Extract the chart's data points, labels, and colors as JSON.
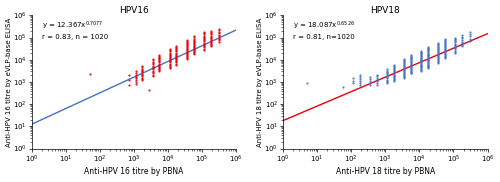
{
  "hpv16": {
    "title": "HPV16",
    "xlabel": "Anti-HPV 16 titre by PBNA",
    "ylabel": "Anti-HPV 16 titre by eVLP-base ELISA",
    "eq_base": "y = 12.367x",
    "exponent": "0.7077",
    "r_text": "r = 0.83, n = 1020",
    "fit_a": 12.367,
    "fit_b": 0.7077,
    "dot_color": "#e8000a",
    "line_color": "#4472c4",
    "xlim_log": [
      0,
      6
    ],
    "ylim_log": [
      0,
      6
    ],
    "x_data_groups": [
      {
        "log_x": 2.85,
        "log_y_center": 3.1,
        "spread": 0.22,
        "count": 3
      },
      {
        "log_x": 3.05,
        "log_y_center": 3.2,
        "spread": 0.28,
        "count": 8
      },
      {
        "log_x": 3.25,
        "log_y_center": 3.4,
        "spread": 0.32,
        "count": 12
      },
      {
        "log_x": 3.55,
        "log_y_center": 3.65,
        "spread": 0.38,
        "count": 14
      },
      {
        "log_x": 3.75,
        "log_y_center": 3.85,
        "spread": 0.38,
        "count": 16
      },
      {
        "log_x": 4.05,
        "log_y_center": 4.05,
        "spread": 0.42,
        "count": 18
      },
      {
        "log_x": 4.25,
        "log_y_center": 4.2,
        "spread": 0.42,
        "count": 18
      },
      {
        "log_x": 4.55,
        "log_y_center": 4.45,
        "spread": 0.42,
        "count": 20
      },
      {
        "log_x": 4.75,
        "log_y_center": 4.65,
        "spread": 0.4,
        "count": 18
      },
      {
        "log_x": 5.05,
        "log_y_center": 4.85,
        "spread": 0.4,
        "count": 16
      },
      {
        "log_x": 5.25,
        "log_y_center": 4.95,
        "spread": 0.35,
        "count": 14
      },
      {
        "log_x": 5.5,
        "log_y_center": 5.1,
        "spread": 0.3,
        "count": 10
      },
      {
        "log_x": 1.7,
        "log_y_center": 3.35,
        "spread": 0.0,
        "count": 1
      },
      {
        "log_x": 3.45,
        "log_y_center": 2.65,
        "spread": 0.0,
        "count": 1
      }
    ]
  },
  "hpv18": {
    "title": "HPV18",
    "xlabel": "Anti-HPV 18 titre by PBNA",
    "ylabel": "Anti-HPV 18 titre by eVLP-base ELISA",
    "eq_base": "y = 18.087x",
    "exponent": "0.6526",
    "r_text": "r = 0.81, n=1020",
    "fit_a": 18.087,
    "fit_b": 0.6526,
    "dot_color": "#4472c4",
    "line_color": "#e8000a",
    "xlim_log": [
      0,
      6
    ],
    "ylim_log": [
      0,
      6
    ],
    "x_data_groups": [
      {
        "log_x": 0.7,
        "log_y_center": 2.95,
        "spread": 0.0,
        "count": 1
      },
      {
        "log_x": 2.05,
        "log_y_center": 3.05,
        "spread": 0.12,
        "count": 3
      },
      {
        "log_x": 2.25,
        "log_y_center": 3.1,
        "spread": 0.22,
        "count": 6
      },
      {
        "log_x": 2.55,
        "log_y_center": 3.05,
        "spread": 0.18,
        "count": 5
      },
      {
        "log_x": 2.75,
        "log_y_center": 3.1,
        "spread": 0.22,
        "count": 7
      },
      {
        "log_x": 3.05,
        "log_y_center": 3.25,
        "spread": 0.32,
        "count": 12
      },
      {
        "log_x": 3.25,
        "log_y_center": 3.4,
        "spread": 0.38,
        "count": 16
      },
      {
        "log_x": 3.55,
        "log_y_center": 3.6,
        "spread": 0.42,
        "count": 20
      },
      {
        "log_x": 3.75,
        "log_y_center": 3.8,
        "spread": 0.42,
        "count": 22
      },
      {
        "log_x": 4.05,
        "log_y_center": 3.95,
        "spread": 0.45,
        "count": 24
      },
      {
        "log_x": 4.25,
        "log_y_center": 4.1,
        "spread": 0.48,
        "count": 26
      },
      {
        "log_x": 4.55,
        "log_y_center": 4.3,
        "spread": 0.45,
        "count": 22
      },
      {
        "log_x": 4.75,
        "log_y_center": 4.5,
        "spread": 0.42,
        "count": 20
      },
      {
        "log_x": 5.05,
        "log_y_center": 4.65,
        "spread": 0.35,
        "count": 14
      },
      {
        "log_x": 5.25,
        "log_y_center": 4.85,
        "spread": 0.25,
        "count": 8
      },
      {
        "log_x": 5.5,
        "log_y_center": 5.05,
        "spread": 0.2,
        "count": 5
      },
      {
        "log_x": 1.75,
        "log_y_center": 2.75,
        "spread": 0.0,
        "count": 1
      }
    ]
  }
}
